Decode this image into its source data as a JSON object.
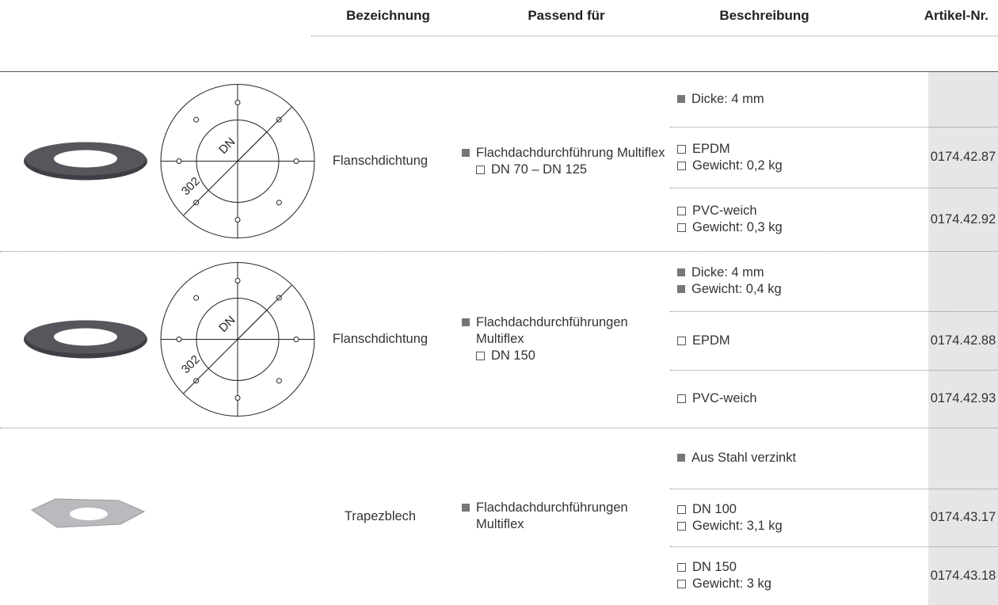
{
  "table": {
    "columns": [
      "Bezeichnung",
      "Passend für",
      "Beschreibung",
      "Artikel-Nr."
    ],
    "rows": [
      {
        "drawing": {
          "dn": "DN",
          "size": "302"
        },
        "name": "Flanschdichtung",
        "fits": "Flachdachdurchführung Multiflex",
        "fits_sub": "DN 70 – DN 125",
        "general": [
          "Dicke: 4 mm"
        ],
        "variants": [
          {
            "lines": [
              "EPDM",
              "Gewicht: 0,2 kg"
            ],
            "article": "0174.42.87"
          },
          {
            "lines": [
              "PVC-weich",
              "Gewicht: 0,3 kg"
            ],
            "article": "0174.42.92"
          }
        ]
      },
      {
        "drawing": {
          "dn": "DN",
          "size": "302"
        },
        "name": "Flanschdichtung",
        "fits": "Flachdachdurchführungen Multiflex",
        "fits_sub": "DN 150",
        "general": [
          "Dicke: 4 mm",
          "Gewicht: 0,4 kg"
        ],
        "variants": [
          {
            "lines": [
              "EPDM"
            ],
            "article": "0174.42.88"
          },
          {
            "lines": [
              "PVC-weich"
            ],
            "article": "0174.42.93"
          }
        ]
      },
      {
        "name": "Trapezblech",
        "fits": "Flachdachdurchführungen Multiflex",
        "general": [
          "Aus Stahl verzinkt"
        ],
        "variants": [
          {
            "lines": [
              "DN 100",
              "Gewicht: 3,1 kg"
            ],
            "article": "0174.43.17"
          },
          {
            "lines": [
              "DN 150",
              "Gewicht: 3 kg"
            ],
            "article": "0174.43.18"
          }
        ]
      }
    ]
  }
}
